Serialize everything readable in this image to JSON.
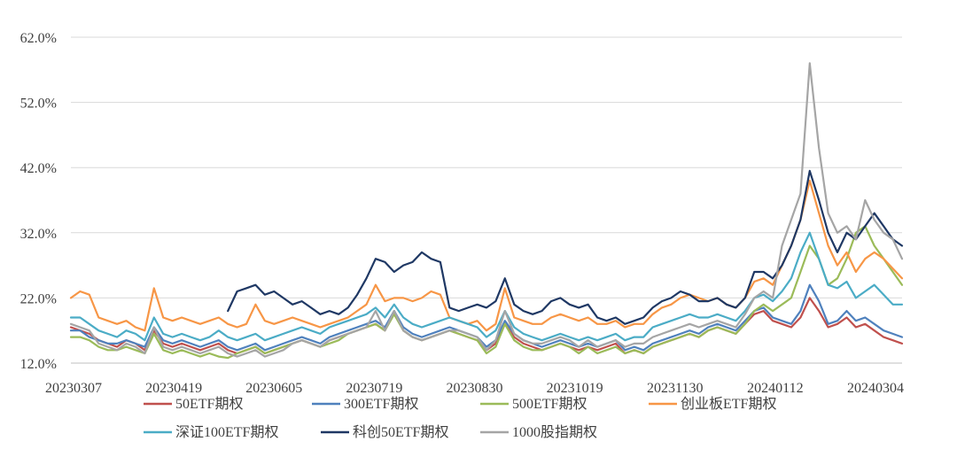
{
  "chart_data": {
    "type": "line",
    "title": "",
    "xlabel": "",
    "ylabel": "",
    "ylim": [
      12,
      62
    ],
    "yticks": [
      "12.0%",
      "22.0%",
      "32.0%",
      "42.0%",
      "52.0%",
      "62.0%"
    ],
    "ytick_values": [
      12,
      22,
      32,
      42,
      52,
      62
    ],
    "xticks": [
      "20230307",
      "20230419",
      "20230605",
      "20230719",
      "20230830",
      "20231019",
      "20231130",
      "20240112",
      "20240304"
    ],
    "grid": true,
    "legend_position": "bottom",
    "series": [
      {
        "name": "50ETF期权",
        "color": "#c0504d",
        "values": [
          17.5,
          17.0,
          16.5,
          15.5,
          15.0,
          14.5,
          15.5,
          15.0,
          14.0,
          17.0,
          15.0,
          14.5,
          15.0,
          14.5,
          14.0,
          14.5,
          15.0,
          14.0,
          13.5,
          14.0,
          14.5,
          13.5,
          14.0,
          14.5,
          15.0,
          15.5,
          15.0,
          14.5,
          15.5,
          16.0,
          16.5,
          17.0,
          17.5,
          18.0,
          17.0,
          20.0,
          17.0,
          16.0,
          15.5,
          16.0,
          16.5,
          17.0,
          16.5,
          16.0,
          15.5,
          14.0,
          15.0,
          18.0,
          16.0,
          15.0,
          14.5,
          14.0,
          14.5,
          15.0,
          14.5,
          14.0,
          14.5,
          14.0,
          14.5,
          15.0,
          13.5,
          14.0,
          13.5,
          14.5,
          15.0,
          15.5,
          16.0,
          16.5,
          16.0,
          17.0,
          17.5,
          17.0,
          16.5,
          18.0,
          19.5,
          20.0,
          18.5,
          18.0,
          17.5,
          19.0,
          22.0,
          20.0,
          17.5,
          18.0,
          19.0,
          17.5,
          18.0,
          17.0,
          16.0,
          15.5,
          15.0
        ]
      },
      {
        "name": "300ETF期权",
        "color": "#4f81bd",
        "values": [
          17.0,
          17.0,
          16.0,
          15.5,
          15.0,
          15.0,
          15.5,
          15.0,
          14.5,
          17.5,
          15.5,
          15.0,
          15.5,
          15.0,
          14.5,
          15.0,
          15.5,
          14.5,
          14.0,
          14.5,
          15.0,
          14.0,
          14.5,
          15.0,
          15.5,
          16.0,
          15.5,
          15.0,
          16.0,
          16.5,
          17.0,
          17.5,
          18.0,
          18.5,
          17.5,
          20.0,
          17.5,
          16.5,
          16.0,
          16.5,
          17.0,
          17.5,
          17.0,
          16.5,
          16.0,
          14.5,
          15.5,
          18.5,
          16.5,
          15.5,
          15.0,
          14.5,
          15.0,
          15.5,
          15.0,
          14.5,
          15.0,
          14.5,
          15.0,
          15.5,
          14.0,
          14.5,
          14.0,
          15.0,
          15.5,
          16.0,
          16.5,
          17.0,
          16.5,
          17.5,
          18.0,
          17.5,
          17.0,
          18.5,
          20.0,
          20.5,
          19.0,
          18.5,
          18.0,
          20.0,
          24.0,
          21.5,
          18.0,
          18.5,
          20.0,
          18.5,
          19.0,
          18.0,
          17.0,
          16.5,
          16.0
        ]
      },
      {
        "name": "500ETF期权",
        "color": "#9bbb59",
        "values": [
          16.0,
          16.0,
          15.5,
          14.5,
          14.0,
          14.0,
          14.5,
          14.0,
          13.5,
          16.5,
          14.0,
          13.5,
          14.0,
          13.5,
          13.0,
          13.5,
          13.0,
          12.8,
          13.5,
          14.0,
          14.5,
          13.5,
          14.0,
          14.5,
          15.0,
          15.5,
          15.0,
          14.5,
          15.0,
          15.5,
          16.5,
          17.0,
          17.5,
          18.0,
          17.0,
          19.5,
          17.0,
          16.0,
          15.5,
          16.0,
          16.5,
          17.0,
          16.5,
          16.0,
          15.5,
          13.5,
          14.5,
          18.0,
          15.5,
          14.5,
          14.0,
          14.0,
          14.5,
          15.0,
          14.5,
          13.5,
          14.5,
          13.5,
          14.0,
          14.5,
          13.5,
          14.0,
          13.5,
          14.5,
          15.0,
          15.5,
          16.0,
          16.5,
          16.0,
          17.0,
          17.5,
          17.0,
          16.5,
          18.0,
          20.0,
          21.0,
          20.0,
          21.0,
          22.0,
          26.0,
          30.0,
          28.0,
          24.0,
          25.0,
          28.0,
          32.0,
          33.0,
          30.0,
          28.0,
          26.0,
          24.0
        ]
      },
      {
        "name": "创业板ETF期权",
        "color": "#f79646",
        "values": [
          22.0,
          23.0,
          22.5,
          19.0,
          18.5,
          18.0,
          18.5,
          17.5,
          17.0,
          23.5,
          19.0,
          18.5,
          19.0,
          18.5,
          18.0,
          18.5,
          19.0,
          18.0,
          17.5,
          18.0,
          21.0,
          18.5,
          18.0,
          18.5,
          19.0,
          18.5,
          18.0,
          17.5,
          18.0,
          18.5,
          19.0,
          20.0,
          21.0,
          24.0,
          21.5,
          22.0,
          22.0,
          21.5,
          22.0,
          23.0,
          22.5,
          19.0,
          18.5,
          18.0,
          18.5,
          17.0,
          18.0,
          23.5,
          19.0,
          18.5,
          18.0,
          18.0,
          19.0,
          19.5,
          19.0,
          18.5,
          19.0,
          18.0,
          18.0,
          18.5,
          17.5,
          18.0,
          18.0,
          19.5,
          20.5,
          21.0,
          22.0,
          22.5,
          22.0,
          21.5,
          22.0,
          21.0,
          20.5,
          22.0,
          24.5,
          25.0,
          24.0,
          27.0,
          30.0,
          34.0,
          40.0,
          35.0,
          30.0,
          27.0,
          29.0,
          26.0,
          28.0,
          29.0,
          28.0,
          26.5,
          25.0
        ]
      },
      {
        "name": "深证100ETF期权",
        "color": "#4bacc6",
        "values": [
          19.0,
          19.0,
          18.0,
          17.0,
          16.5,
          16.0,
          17.0,
          16.5,
          15.5,
          19.0,
          16.5,
          16.0,
          16.5,
          16.0,
          15.5,
          16.0,
          17.0,
          16.0,
          15.5,
          16.0,
          16.5,
          15.5,
          16.0,
          16.5,
          17.0,
          17.5,
          17.0,
          16.5,
          17.5,
          18.0,
          18.5,
          19.0,
          19.5,
          20.5,
          19.0,
          21.0,
          19.0,
          18.0,
          17.5,
          18.0,
          18.5,
          19.0,
          18.5,
          18.0,
          17.5,
          16.0,
          17.0,
          20.0,
          17.5,
          16.5,
          16.0,
          15.5,
          16.0,
          16.5,
          16.0,
          15.5,
          16.0,
          15.5,
          16.0,
          16.5,
          15.5,
          16.0,
          16.0,
          17.5,
          18.0,
          18.5,
          19.0,
          19.5,
          19.0,
          19.0,
          19.5,
          19.0,
          18.5,
          20.0,
          22.0,
          22.5,
          21.5,
          23.0,
          25.0,
          29.0,
          32.0,
          28.0,
          24.0,
          23.5,
          24.5,
          22.0,
          23.0,
          24.0,
          22.5,
          21.0,
          21.0
        ]
      },
      {
        "name": "科创50ETF期权",
        "color": "#1f3864",
        "values": [
          null,
          null,
          null,
          null,
          null,
          null,
          null,
          null,
          null,
          null,
          null,
          null,
          null,
          null,
          null,
          null,
          null,
          20.0,
          23.0,
          23.5,
          24.0,
          22.5,
          23.0,
          22.0,
          21.0,
          21.5,
          20.5,
          19.5,
          20.0,
          19.5,
          20.5,
          22.5,
          25.0,
          28.0,
          27.5,
          26.0,
          27.0,
          27.5,
          29.0,
          28.0,
          27.5,
          20.5,
          20.0,
          20.5,
          21.0,
          20.5,
          21.5,
          25.0,
          21.0,
          20.0,
          19.5,
          20.0,
          21.5,
          22.0,
          21.0,
          20.5,
          21.0,
          19.0,
          18.5,
          19.0,
          18.0,
          18.5,
          19.0,
          20.5,
          21.5,
          22.0,
          23.0,
          22.5,
          21.5,
          21.5,
          22.0,
          21.0,
          20.5,
          22.0,
          26.0,
          26.0,
          25.0,
          27.0,
          30.0,
          34.0,
          41.5,
          37.0,
          32.0,
          29.0,
          32.0,
          31.0,
          33.0,
          35.0,
          33.0,
          31.0,
          30.0
        ]
      },
      {
        "name": "1000股指期权",
        "color": "#a5a5a5",
        "values": [
          18.0,
          17.5,
          17.0,
          15.0,
          14.5,
          14.0,
          15.0,
          14.5,
          13.5,
          17.5,
          14.5,
          14.0,
          14.5,
          14.0,
          13.5,
          14.0,
          14.5,
          13.5,
          13.0,
          13.5,
          14.0,
          13.0,
          13.5,
          14.0,
          15.0,
          15.5,
          15.0,
          14.5,
          15.5,
          16.0,
          16.5,
          17.0,
          17.5,
          20.0,
          17.0,
          20.0,
          17.0,
          16.0,
          15.5,
          16.0,
          16.5,
          17.0,
          17.0,
          16.5,
          16.0,
          14.0,
          15.5,
          20.0,
          16.5,
          15.5,
          15.0,
          15.0,
          15.5,
          16.0,
          15.5,
          14.5,
          15.5,
          14.5,
          15.0,
          15.5,
          14.5,
          15.0,
          15.0,
          16.0,
          16.5,
          17.0,
          17.5,
          18.0,
          17.5,
          18.0,
          18.5,
          18.0,
          17.5,
          19.5,
          22.0,
          23.0,
          22.0,
          30.0,
          34.0,
          38.0,
          58.0,
          45.0,
          35.0,
          32.0,
          33.0,
          31.0,
          37.0,
          34.0,
          32.0,
          31.0,
          28.0
        ]
      }
    ]
  }
}
